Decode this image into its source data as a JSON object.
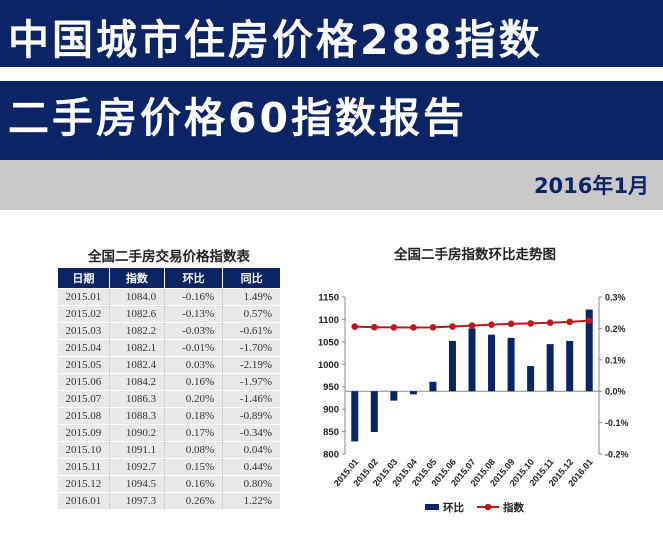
{
  "header": {
    "title_line1": "中国城市住房价格288指数",
    "title_line2": "二手房价格60指数报告",
    "date": "2016年1月"
  },
  "table": {
    "title": "全国二手房交易价格指数表",
    "headers": [
      "日期",
      "指数",
      "环比",
      "同比"
    ],
    "rows": [
      [
        "2015.01",
        "1084.0",
        "-0.16%",
        "1.49%"
      ],
      [
        "2015.02",
        "1082.6",
        "-0.13%",
        "0.57%"
      ],
      [
        "2015.03",
        "1082.2",
        "-0.03%",
        "-0.61%"
      ],
      [
        "2015.04",
        "1082.1",
        "-0.01%",
        "-1.70%"
      ],
      [
        "2015.05",
        "1082.4",
        "0.03%",
        "-2.19%"
      ],
      [
        "2015.06",
        "1084.2",
        "0.16%",
        "-1.97%"
      ],
      [
        "2015.07",
        "1086.3",
        "0.20%",
        "-1.46%"
      ],
      [
        "2015.08",
        "1088.3",
        "0.18%",
        "-0.89%"
      ],
      [
        "2015.09",
        "1090.2",
        "0.17%",
        "-0.34%"
      ],
      [
        "2015.10",
        "1091.1",
        "0.08%",
        "0.04%"
      ],
      [
        "2015.11",
        "1092.7",
        "0.15%",
        "0.44%"
      ],
      [
        "2015.12",
        "1094.5",
        "0.16%",
        "0.80%"
      ],
      [
        "2016.01",
        "1097.3",
        "0.26%",
        "1.22%"
      ]
    ]
  },
  "chart_data": {
    "type": "bar",
    "title": "全国二手房指数环比走势图",
    "categories": [
      "2015.01",
      "2015.02",
      "2015.03",
      "2015.04",
      "2015.05",
      "2015.06",
      "2015.07",
      "2015.08",
      "2015.09",
      "2015.10",
      "2015.11",
      "2015.12",
      "2016.01"
    ],
    "series": [
      {
        "name": "环比",
        "type": "bar",
        "axis": "right",
        "color": "#0b2466",
        "values": [
          -0.16,
          -0.13,
          -0.03,
          -0.01,
          0.03,
          0.16,
          0.2,
          0.18,
          0.17,
          0.08,
          0.15,
          0.16,
          0.26
        ]
      },
      {
        "name": "指数",
        "type": "line",
        "axis": "left",
        "color": "#c0171c",
        "values": [
          1084.0,
          1082.6,
          1082.2,
          1082.1,
          1082.4,
          1084.2,
          1086.3,
          1088.3,
          1090.2,
          1091.1,
          1092.7,
          1094.5,
          1097.3
        ]
      }
    ],
    "y_left": {
      "min": 800,
      "max": 1150,
      "ticks": [
        "1150",
        "1100",
        "1050",
        "1000",
        "950",
        "900",
        "850",
        "800"
      ]
    },
    "y_right": {
      "min": -0.2,
      "max": 0.3,
      "ticks": [
        "0.3%",
        "0.2%",
        "0.1%",
        "0.0%",
        "-0.1%",
        "-0.2%"
      ]
    },
    "legend_position": "bottom",
    "grid": false
  }
}
